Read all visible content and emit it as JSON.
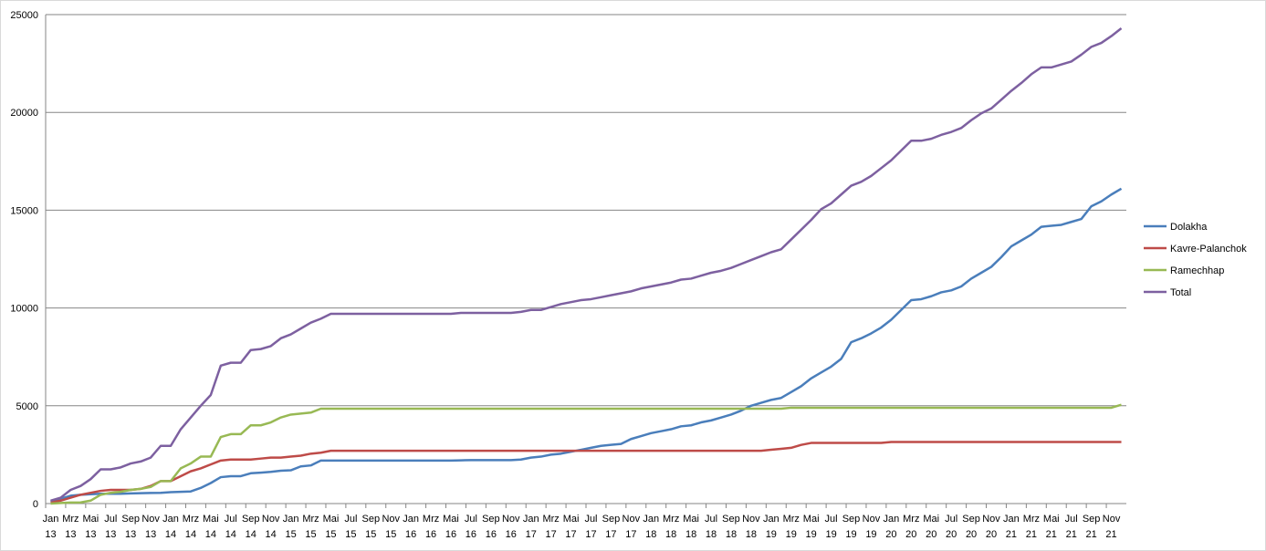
{
  "chart_data": {
    "type": "line",
    "legend": "right",
    "grid": true,
    "categories": [
      "Jan 13",
      null,
      "Mrz 13",
      null,
      "Mai 13",
      null,
      "Jul 13",
      null,
      "Sep 13",
      null,
      "Nov 13",
      null,
      "Jan 14",
      null,
      "Mrz 14",
      null,
      "Mai 14",
      null,
      "Jul 14",
      null,
      "Sep 14",
      null,
      "Nov 14",
      null,
      "Jan 15",
      null,
      "Mrz 15",
      null,
      "Mai 15",
      null,
      "Jul 15",
      null,
      "Sep 15",
      null,
      "Nov 15",
      null,
      "Jan 16",
      null,
      "Mrz 16",
      null,
      "Mai 16",
      null,
      "Jul 16",
      null,
      "Sep 16",
      null,
      "Nov 16",
      null,
      "Jan 17",
      null,
      "Mrz 17",
      null,
      "Mai 17",
      null,
      "Jul 17",
      null,
      "Sep 17",
      null,
      "Nov 17",
      null,
      "Jan 18",
      null,
      "Mrz 18",
      null,
      "Mai 18",
      null,
      "Jul 18",
      null,
      "Sep 18",
      null,
      "Nov 18",
      null,
      "Jan 19",
      null,
      "Mrz 19",
      null,
      "Mai 19",
      null,
      "Jul 19",
      null,
      "Sep 19",
      null,
      "Nov 19",
      null,
      "Jan 20",
      null,
      "Mrz 20",
      null,
      "Mai 20",
      null,
      "Jul 20",
      null,
      "Sep 20",
      null,
      "Nov 20",
      null,
      "Jan 21",
      null,
      "Mrz 21",
      null,
      "Mai 21",
      null,
      "Jul 21",
      null,
      "Sep 21",
      null,
      "Nov 21",
      null
    ],
    "ylim": [
      0,
      25000
    ],
    "yticks": [
      0,
      5000,
      10000,
      15000,
      20000,
      25000
    ],
    "series": [
      {
        "name": "Dolakha",
        "color": "#4a7ebb",
        "values": [
          100,
          250,
          400,
          450,
          480,
          500,
          500,
          500,
          520,
          530,
          540,
          550,
          580,
          600,
          620,
          800,
          1050,
          1350,
          1400,
          1400,
          1550,
          1580,
          1620,
          1680,
          1700,
          1900,
          1950,
          2200,
          2200,
          2200,
          2200,
          2200,
          2200,
          2200,
          2200,
          2200,
          2200,
          2200,
          2200,
          2200,
          2200,
          2210,
          2220,
          2220,
          2220,
          2220,
          2220,
          2250,
          2350,
          2400,
          2500,
          2550,
          2650,
          2750,
          2850,
          2950,
          3000,
          3050,
          3300,
          3450,
          3600,
          3700,
          3800,
          3950,
          4000,
          4150,
          4250,
          4400,
          4550,
          4750,
          5000,
          5150,
          5300,
          5400,
          5700,
          6000,
          6400,
          6700,
          7000,
          7400,
          8250,
          8450,
          8700,
          9000,
          9400,
          9900,
          10400,
          10450,
          10600,
          10800,
          10900,
          11100,
          11500,
          11800,
          12100,
          12600,
          13150,
          13450,
          13750,
          14150,
          14200,
          14250,
          14400,
          14550,
          15200,
          15450,
          15800,
          16100
        ]
      },
      {
        "name": "Kavre-Palanchok",
        "color": "#be4b48",
        "values": [
          50,
          150,
          300,
          450,
          550,
          650,
          700,
          700,
          700,
          750,
          900,
          1150,
          1150,
          1400,
          1650,
          1800,
          2000,
          2200,
          2250,
          2250,
          2250,
          2300,
          2350,
          2350,
          2400,
          2450,
          2550,
          2600,
          2700,
          2700,
          2700,
          2700,
          2700,
          2700,
          2700,
          2700,
          2700,
          2700,
          2700,
          2700,
          2700,
          2700,
          2700,
          2700,
          2700,
          2700,
          2700,
          2700,
          2700,
          2700,
          2700,
          2700,
          2700,
          2700,
          2700,
          2700,
          2700,
          2700,
          2700,
          2700,
          2700,
          2700,
          2700,
          2700,
          2700,
          2700,
          2700,
          2700,
          2700,
          2700,
          2700,
          2700,
          2750,
          2800,
          2850,
          3000,
          3100,
          3100,
          3100,
          3100,
          3100,
          3100,
          3100,
          3100,
          3150,
          3150,
          3150,
          3150,
          3150,
          3150,
          3150,
          3150,
          3150,
          3150,
          3150,
          3150,
          3150,
          3150,
          3150,
          3150,
          3150,
          3150,
          3150,
          3150,
          3150,
          3150,
          3150,
          3150
        ]
      },
      {
        "name": "Ramechhap",
        "color": "#98b954",
        "values": [
          0,
          30,
          50,
          60,
          150,
          450,
          550,
          600,
          700,
          750,
          850,
          1150,
          1150,
          1800,
          2050,
          2400,
          2400,
          3400,
          3550,
          3550,
          4000,
          4000,
          4150,
          4400,
          4550,
          4600,
          4650,
          4850,
          4850,
          4850,
          4850,
          4850,
          4850,
          4850,
          4850,
          4850,
          4850,
          4850,
          4850,
          4850,
          4850,
          4850,
          4850,
          4850,
          4850,
          4850,
          4850,
          4850,
          4850,
          4850,
          4850,
          4850,
          4850,
          4850,
          4850,
          4850,
          4850,
          4850,
          4850,
          4850,
          4850,
          4850,
          4850,
          4850,
          4850,
          4850,
          4850,
          4850,
          4850,
          4850,
          4850,
          4850,
          4850,
          4850,
          4900,
          4900,
          4900,
          4900,
          4900,
          4900,
          4900,
          4900,
          4900,
          4900,
          4900,
          4900,
          4900,
          4900,
          4900,
          4900,
          4900,
          4900,
          4900,
          4900,
          4900,
          4900,
          4900,
          4900,
          4900,
          4900,
          4900,
          4900,
          4900,
          4900,
          4900,
          4900,
          4900,
          5050
        ]
      },
      {
        "name": "Total",
        "color": "#7d60a0",
        "values": [
          150,
          300,
          700,
          900,
          1250,
          1750,
          1750,
          1850,
          2050,
          2150,
          2350,
          2950,
          2950,
          3800,
          4400,
          5000,
          5550,
          7050,
          7200,
          7200,
          7850,
          7900,
          8050,
          8450,
          8650,
          8950,
          9250,
          9450,
          9700,
          9700,
          9700,
          9700,
          9700,
          9700,
          9700,
          9700,
          9700,
          9700,
          9700,
          9700,
          9700,
          9750,
          9750,
          9750,
          9750,
          9750,
          9750,
          9800,
          9900,
          9900,
          10050,
          10200,
          10300,
          10400,
          10450,
          10550,
          10650,
          10750,
          10850,
          11000,
          11100,
          11200,
          11300,
          11450,
          11500,
          11650,
          11800,
          11900,
          12050,
          12250,
          12450,
          12650,
          12850,
          13000,
          13500,
          14000,
          14500,
          15050,
          15350,
          15800,
          16250,
          16450,
          16750,
          17150,
          17550,
          18050,
          18550,
          18550,
          18650,
          18850,
          19000,
          19200,
          19600,
          19950,
          20200,
          20650,
          21100,
          21500,
          21950,
          22300,
          22300,
          22450,
          22600,
          22950,
          23350,
          23550,
          23900,
          24300
        ]
      }
    ]
  }
}
